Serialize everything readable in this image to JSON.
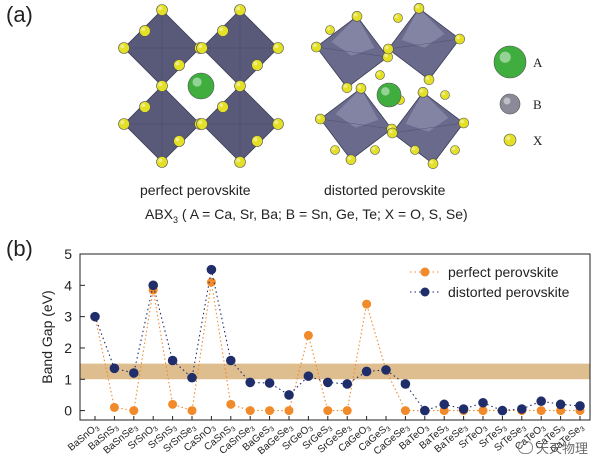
{
  "panel_a": {
    "label": "(a)",
    "caption_left": "perfect perovskite",
    "caption_right": "distorted perovskite",
    "formula_prefix": "ABX",
    "formula_sub": "3",
    "formula_rest": " ( A = Ca, Sr, Ba; B = Sn, Ge, Te; X = O, S, Se)",
    "legend": [
      {
        "letter": "A",
        "color": "#3fae3f"
      },
      {
        "letter": "B",
        "color": "#8a8a98"
      },
      {
        "letter": "X",
        "color": "#e4e026"
      }
    ],
    "octahedron_color": "#595a7a"
  },
  "panel_b": {
    "label": "(b)",
    "watermark": "天天物理"
  },
  "chart_data": {
    "type": "line",
    "ylabel": "Band Gap (eV)",
    "xlabel": "",
    "ylim": [
      -0.3,
      5
    ],
    "yticks": [
      "0",
      "1",
      "2",
      "3",
      "4",
      "5"
    ],
    "band_highlight": [
      1.0,
      1.5
    ],
    "band_color": "#d8b27a",
    "legend_position": "top-right",
    "categories": [
      {
        "base": "BaSnO",
        "sub": "3"
      },
      {
        "base": "BaSnS",
        "sub": "3"
      },
      {
        "base": "BaSnSe",
        "sub": "3"
      },
      {
        "base": "SrSnO",
        "sub": "3"
      },
      {
        "base": "SrSnS",
        "sub": "3"
      },
      {
        "base": "SrSnSe",
        "sub": "3"
      },
      {
        "base": "CaSnO",
        "sub": "3"
      },
      {
        "base": "CaSnS",
        "sub": "3"
      },
      {
        "base": "CaSnSe",
        "sub": "3"
      },
      {
        "base": "BaGeS",
        "sub": "3"
      },
      {
        "base": "BaGeSe",
        "sub": "3"
      },
      {
        "base": "SrGeO",
        "sub": "3"
      },
      {
        "base": "SrGeS",
        "sub": "3"
      },
      {
        "base": "SrGeSe",
        "sub": "3"
      },
      {
        "base": "CaGeO",
        "sub": "3"
      },
      {
        "base": "CaGeS",
        "sub": "3"
      },
      {
        "base": "CaGeSe",
        "sub": "3"
      },
      {
        "base": "BaTeO",
        "sub": "3"
      },
      {
        "base": "BaTeS",
        "sub": "3"
      },
      {
        "base": "BaTeSe",
        "sub": "3"
      },
      {
        "base": "SrTeO",
        "sub": "3"
      },
      {
        "base": "SrTeS",
        "sub": "3"
      },
      {
        "base": "SrTeSe",
        "sub": "3"
      },
      {
        "base": "CaTeO",
        "sub": "3"
      },
      {
        "base": "CaTeS",
        "sub": "3"
      },
      {
        "base": "CaTeSe",
        "sub": "3"
      }
    ],
    "series": [
      {
        "name": "perfect perovskite",
        "color": "#f08a2a",
        "values": [
          3.0,
          0.1,
          0.0,
          3.85,
          0.2,
          0.0,
          4.1,
          0.2,
          0.0,
          0.0,
          0.0,
          2.4,
          0.0,
          0.0,
          3.4,
          1.3,
          0.0,
          0.0,
          0.0,
          0.0,
          0.0,
          0.0,
          0.0,
          0.0,
          0.0,
          0.0
        ]
      },
      {
        "name": "distorted perovskite",
        "color": "#1f2d6a",
        "values": [
          3.0,
          1.35,
          1.2,
          4.0,
          1.6,
          1.05,
          4.5,
          1.6,
          0.9,
          0.88,
          0.5,
          1.1,
          0.9,
          0.85,
          1.25,
          1.3,
          0.85,
          0.0,
          0.2,
          0.05,
          0.25,
          0.0,
          0.05,
          0.3,
          0.2,
          0.15
        ]
      }
    ]
  }
}
